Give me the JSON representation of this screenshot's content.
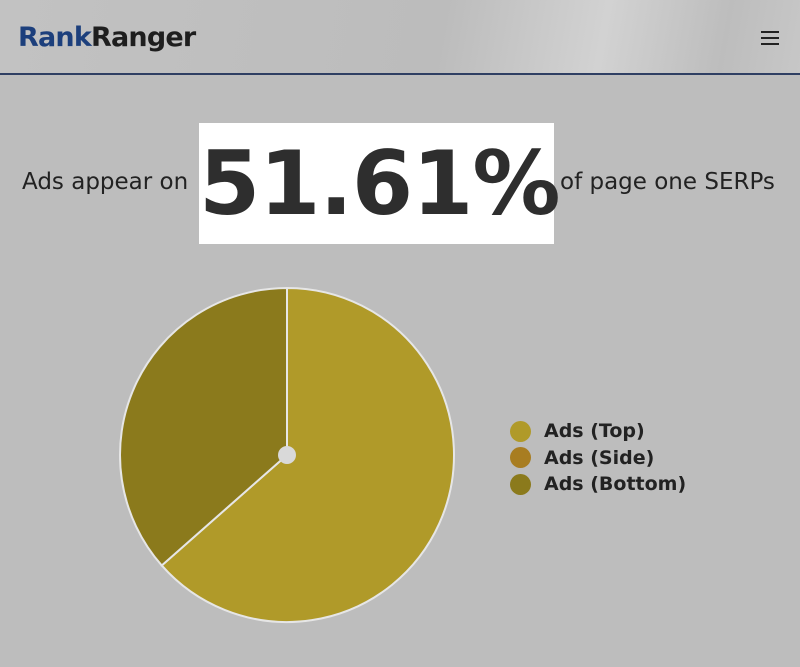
{
  "header": {
    "logo_part1": "Rank",
    "logo_part2": "Ranger",
    "menu_icon": "hamburger-menu-icon"
  },
  "headline": {
    "prefix": "Ads appear on",
    "stat": "51.61%",
    "suffix": "of page one SERPs"
  },
  "chart_data": {
    "type": "pie",
    "categories": [
      "Ads (Top)",
      "Ads (Side)",
      "Ads (Bottom)"
    ],
    "values": [
      63.5,
      0,
      36.5
    ],
    "colors": [
      "#b09a29",
      "#a87d21",
      "#8b7a1c"
    ],
    "legend_position": "right"
  }
}
